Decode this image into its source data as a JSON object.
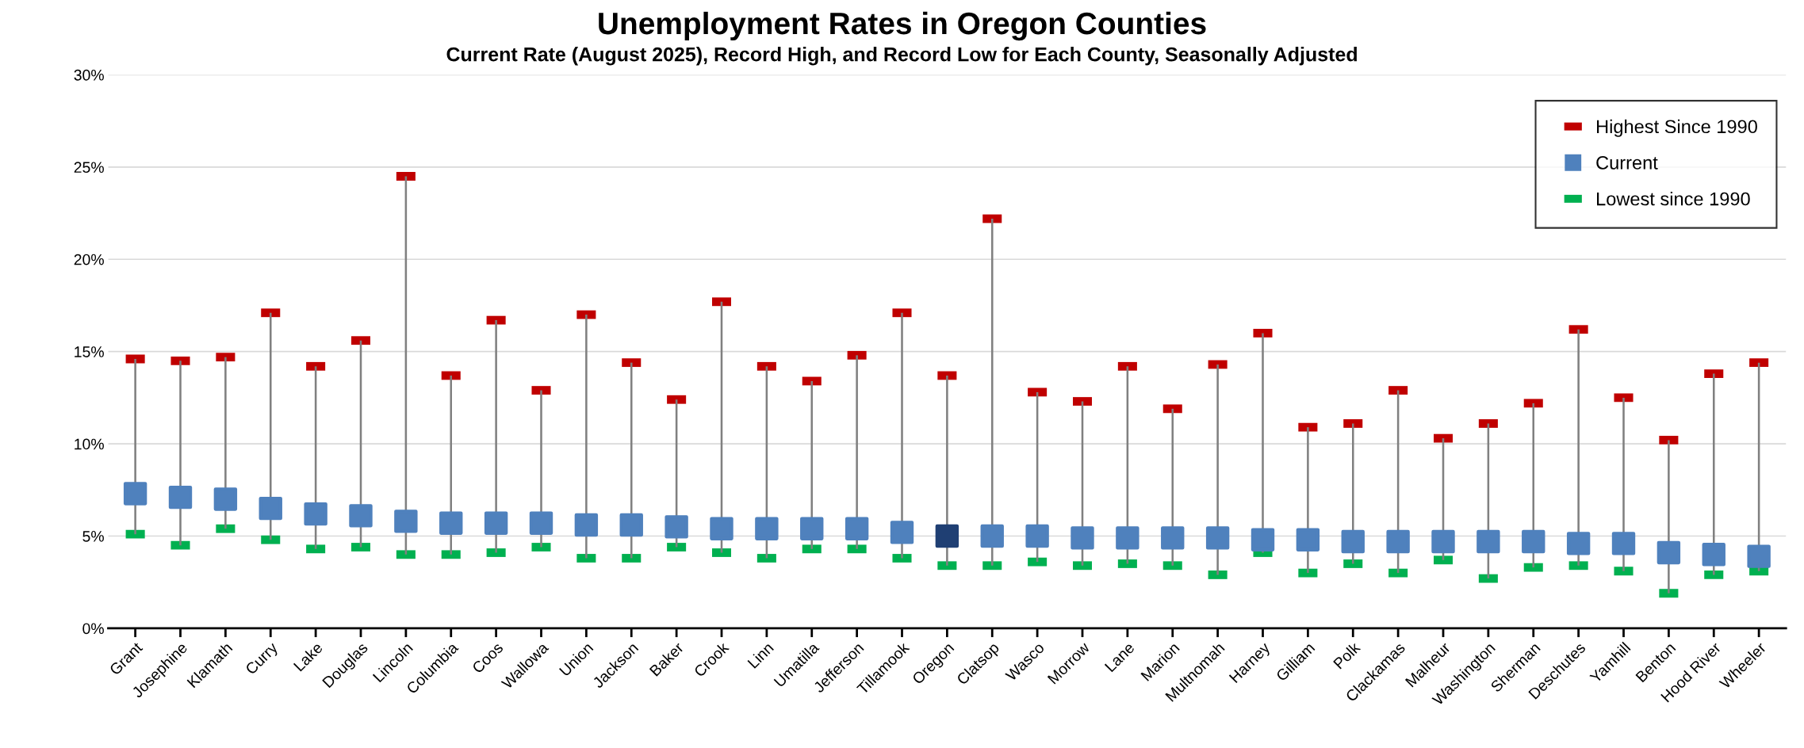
{
  "chart_data": {
    "type": "scatter",
    "title": "Unemployment Rates in Oregon Counties",
    "subtitle": "Current Rate (August 2025), Record High, and Record Low for Each County, Seasonally Adjusted",
    "categories": [
      "Grant",
      "Josephine",
      "Klamath",
      "Curry",
      "Lake",
      "Douglas",
      "Lincoln",
      "Columbia",
      "Coos",
      "Wallowa",
      "Union",
      "Jackson",
      "Baker",
      "Crook",
      "Linn",
      "Umatilla",
      "Jefferson",
      "Tillamook",
      "Oregon",
      "Clatsop",
      "Wasco",
      "Morrow",
      "Lane",
      "Marion",
      "Multnomah",
      "Harney",
      "Gilliam",
      "Polk",
      "Clackamas",
      "Malheur",
      "Washington",
      "Sherman",
      "Deschutes",
      "Yamhill",
      "Benton",
      "Hood River",
      "Wheeler"
    ],
    "series": [
      {
        "type": "bar",
        "color": "#808080",
        "base": [
          5.1,
          4.5,
          5.4,
          4.8,
          4.3,
          4.4,
          4.0,
          4.0,
          4.1,
          4.4,
          3.8,
          3.8,
          4.4,
          4.1,
          3.8,
          4.3,
          4.3,
          3.8,
          3.4,
          3.4,
          3.6,
          3.4,
          3.5,
          3.4,
          2.9,
          4.1,
          3.0,
          3.5,
          3.0,
          3.7,
          2.7,
          3.3,
          3.4,
          3.1,
          1.9,
          2.9,
          3.1
        ],
        "values": [
          9.5,
          10.0,
          9.3,
          12.3,
          9.9,
          11.2,
          20.5,
          9.7,
          12.6,
          8.5,
          13.2,
          10.6,
          8.0,
          13.6,
          10.4,
          9.1,
          10.5,
          13.3,
          10.3,
          18.8,
          9.2,
          8.9,
          10.7,
          8.5,
          11.4,
          11.9,
          7.9,
          7.6,
          9.9,
          6.6,
          8.4,
          8.9,
          12.8,
          9.4,
          8.3,
          10.9,
          11.3
        ]
      },
      {
        "name": "Highest Since 1990",
        "color": "#c00000",
        "values": [
          14.6,
          14.5,
          14.7,
          17.1,
          14.2,
          15.6,
          24.5,
          13.7,
          16.7,
          12.9,
          17.0,
          14.4,
          12.4,
          17.7,
          14.2,
          13.4,
          14.8,
          17.1,
          13.7,
          22.2,
          12.8,
          12.3,
          14.2,
          11.9,
          14.3,
          16.0,
          10.9,
          11.1,
          12.9,
          10.3,
          11.1,
          12.2,
          16.2,
          12.5,
          10.2,
          13.8,
          14.4
        ]
      },
      {
        "name": "Current",
        "color": "#4f81bd",
        "marker": "square",
        "colors": [
          "#4f81bd",
          "#4f81bd",
          "#4f81bd",
          "#4f81bd",
          "#4f81bd",
          "#4f81bd",
          "#4f81bd",
          "#4f81bd",
          "#4f81bd",
          "#4f81bd",
          "#4f81bd",
          "#4f81bd",
          "#4f81bd",
          "#4f81bd",
          "#4f81bd",
          "#4f81bd",
          "#4f81bd",
          "#4f81bd",
          "#1f3f73",
          "#4f81bd",
          "#4f81bd",
          "#4f81bd",
          "#4f81bd",
          "#4f81bd",
          "#4f81bd",
          "#4f81bd",
          "#4f81bd",
          "#4f81bd",
          "#4f81bd",
          "#4f81bd",
          "#4f81bd",
          "#4f81bd",
          "#4f81bd",
          "#4f81bd",
          "#4f81bd",
          "#4f81bd",
          "#4f81bd"
        ],
        "values": [
          7.3,
          7.1,
          7.0,
          6.5,
          6.2,
          6.1,
          5.8,
          5.7,
          5.7,
          5.7,
          5.6,
          5.6,
          5.5,
          5.4,
          5.4,
          5.4,
          5.4,
          5.2,
          5.0,
          5.0,
          5.0,
          4.9,
          4.9,
          4.9,
          4.9,
          4.8,
          4.8,
          4.7,
          4.7,
          4.7,
          4.7,
          4.7,
          4.6,
          4.6,
          4.1,
          4.0,
          3.9
        ]
      },
      {
        "name": "Lowest since 1990",
        "color": "#00b050",
        "values": [
          5.1,
          4.5,
          5.4,
          4.8,
          4.3,
          4.4,
          4.0,
          4.0,
          4.1,
          4.4,
          3.8,
          3.8,
          4.4,
          4.1,
          3.8,
          4.3,
          4.3,
          3.8,
          3.4,
          3.4,
          3.6,
          3.4,
          3.5,
          3.4,
          2.9,
          4.1,
          3.0,
          3.5,
          3.0,
          3.7,
          2.7,
          3.3,
          3.4,
          3.1,
          1.9,
          2.9,
          3.1
        ]
      }
    ],
    "ylim": [
      0,
      30
    ],
    "yticks": [
      {
        "value": 0,
        "label": "0%"
      },
      {
        "value": 5,
        "label": "5%"
      },
      {
        "value": 10,
        "label": "10%"
      },
      {
        "value": 15,
        "label": "15%"
      },
      {
        "value": 20,
        "label": "20%"
      },
      {
        "value": 25,
        "label": "25%"
      },
      {
        "value": 30,
        "label": "30%"
      }
    ],
    "grid": "y",
    "legend": "top right"
  }
}
